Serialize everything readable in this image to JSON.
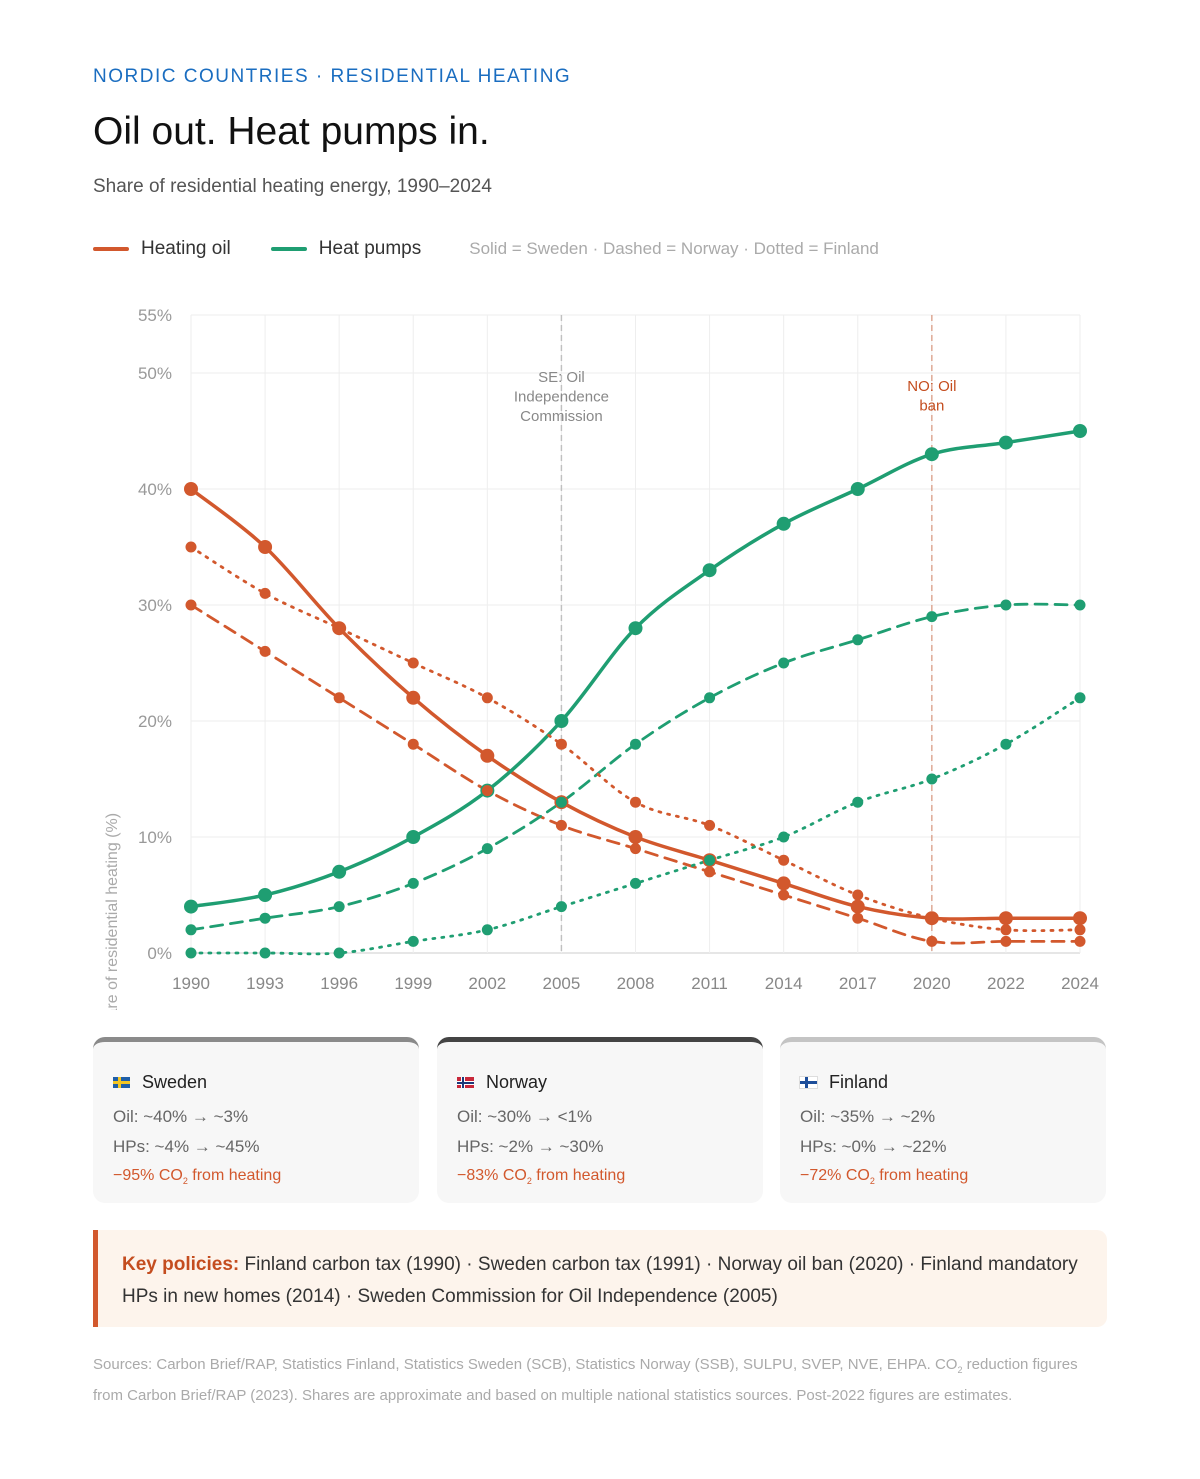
{
  "header": {
    "kicker": "NORDIC COUNTRIES · RESIDENTIAL HEATING",
    "title": "Oil out. Heat pumps in.",
    "subtitle": "Share of residential heating energy, 1990–2024"
  },
  "legend": {
    "oil": "Heating oil",
    "hp": "Heat pumps",
    "note": "Solid = Sweden · Dashed = Norway · Dotted = Finland"
  },
  "colors": {
    "oil": "#d2582d",
    "hp": "#1f9e72"
  },
  "chart_data": {
    "type": "line",
    "ylabel": "Share of residential heating (%)",
    "ylim": [
      0,
      55
    ],
    "yticks": [
      "0%",
      "10%",
      "20%",
      "30%",
      "40%",
      "50%",
      "55%"
    ],
    "ytick_values": [
      0,
      10,
      20,
      30,
      40,
      50,
      55
    ],
    "categories": [
      "1990",
      "1993",
      "1996",
      "1999",
      "2002",
      "2005",
      "2008",
      "2011",
      "2014",
      "2017",
      "2020",
      "2022",
      "2024"
    ],
    "grid": true,
    "series": [
      {
        "key": "oil",
        "country": "Sweden",
        "style": "solid",
        "values": [
          40,
          35,
          28,
          22,
          17,
          13,
          10,
          8,
          6,
          4,
          3,
          3,
          3
        ]
      },
      {
        "key": "hp",
        "country": "Sweden",
        "style": "solid",
        "values": [
          4,
          5,
          7,
          10,
          14,
          20,
          28,
          33,
          37,
          40,
          43,
          44,
          45
        ]
      },
      {
        "key": "oil",
        "country": "Norway",
        "style": "dashed",
        "values": [
          30,
          26,
          22,
          18,
          14,
          11,
          9,
          7,
          5,
          3,
          1,
          1,
          1
        ]
      },
      {
        "key": "hp",
        "country": "Norway",
        "style": "dashed",
        "values": [
          2,
          3,
          4,
          6,
          9,
          13,
          18,
          22,
          25,
          27,
          29,
          30,
          30
        ]
      },
      {
        "key": "oil",
        "country": "Finland",
        "style": "dotted",
        "values": [
          35,
          31,
          28,
          25,
          22,
          18,
          13,
          11,
          8,
          5,
          3,
          2,
          2
        ]
      },
      {
        "key": "hp",
        "country": "Finland",
        "style": "dotted",
        "values": [
          0,
          0,
          0,
          1,
          2,
          4,
          6,
          8,
          10,
          13,
          15,
          18,
          22
        ]
      }
    ],
    "annotations": [
      {
        "x": "2005",
        "lines": [
          "SE: Oil",
          "Independence",
          "Commission"
        ],
        "color": "#888888"
      },
      {
        "x": "2020",
        "lines": [
          "NO: Oil",
          "ban"
        ],
        "color": "#c44d1f"
      }
    ]
  },
  "cards": [
    {
      "country": "Sweden",
      "oil": "Oil: ~40% → ~3%",
      "hp": "HPs: ~4% → ~45%",
      "co2_pre": "−95% CO",
      "co2_sub": "2",
      "co2_post": " from heating"
    },
    {
      "country": "Norway",
      "oil": "Oil: ~30% → <1%",
      "hp": "HPs: ~2% → ~30%",
      "co2_pre": "−83% CO",
      "co2_sub": "2",
      "co2_post": " from heating"
    },
    {
      "country": "Finland",
      "oil": "Oil: ~35% → ~2%",
      "hp": "HPs: ~0% → ~22%",
      "co2_pre": "−72% CO",
      "co2_sub": "2",
      "co2_post": " from heating"
    }
  ],
  "policy": {
    "label": "Key policies:",
    "text": " Finland carbon tax (1990) · Sweden carbon tax (1991) · Norway oil ban (2020) · Finland mandatory HPs in new homes (2014) · Sweden Commission for Oil Independence (2005)"
  },
  "sources": {
    "pre": "Sources: Carbon Brief/RAP, Statistics Finland, Statistics Sweden (SCB), Statistics Norway (SSB), SULPU, SVEP, NVE, EHPA. CO",
    "sub": "2",
    "post": " reduction figures from Carbon Brief/RAP (2023). Shares are approximate and based on multiple national statistics sources. Post-2022 figures are estimates."
  }
}
